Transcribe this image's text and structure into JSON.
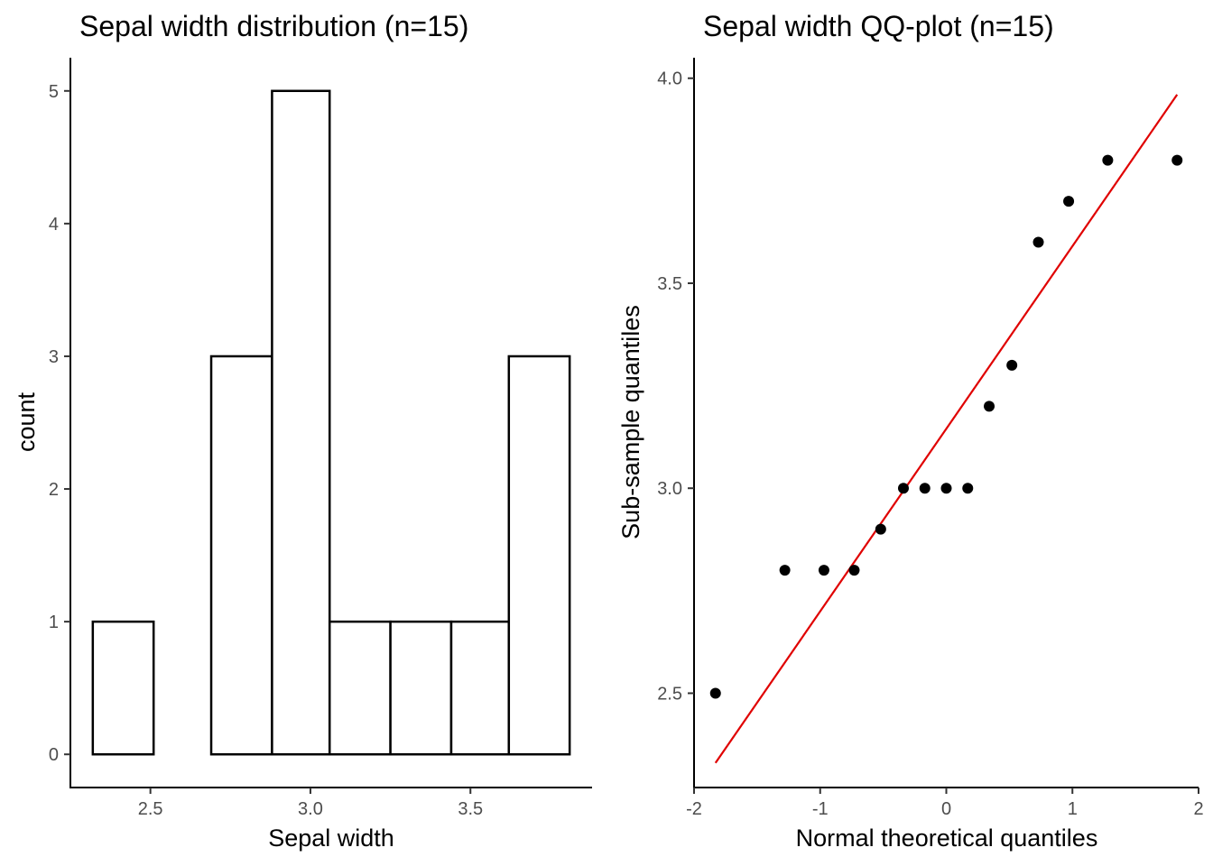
{
  "chart_data": [
    {
      "type": "bar",
      "title": "Sepal width distribution (n=15)",
      "xlabel": "Sepal width",
      "ylabel": "count",
      "bins": [
        {
          "x0": 2.32,
          "x1": 2.51,
          "count": 1
        },
        {
          "x0": 2.51,
          "x1": 2.69,
          "count": 0
        },
        {
          "x0": 2.69,
          "x1": 2.88,
          "count": 3
        },
        {
          "x0": 2.88,
          "x1": 3.06,
          "count": 5
        },
        {
          "x0": 3.06,
          "x1": 3.25,
          "count": 1
        },
        {
          "x0": 3.25,
          "x1": 3.44,
          "count": 1
        },
        {
          "x0": 3.44,
          "x1": 3.62,
          "count": 1
        },
        {
          "x0": 3.62,
          "x1": 3.81,
          "count": 3
        }
      ],
      "xlim": [
        2.25,
        3.88
      ],
      "ylim": [
        -0.25,
        5.25
      ],
      "xticks": [
        2.5,
        3.0,
        3.5
      ],
      "xtick_labels": [
        "2.5",
        "3.0",
        "3.5"
      ],
      "yticks": [
        0,
        1,
        2,
        3,
        4,
        5
      ],
      "ytick_labels": [
        "0",
        "1",
        "2",
        "3",
        "4",
        "5"
      ],
      "grid": false
    },
    {
      "type": "scatter",
      "title": "Sepal width QQ-plot (n=15)",
      "xlabel": "Normal theoretical quantiles",
      "ylabel": "Sub-sample quantiles",
      "points": [
        {
          "x": -1.83,
          "y": 2.5
        },
        {
          "x": -1.28,
          "y": 2.8
        },
        {
          "x": -0.97,
          "y": 2.8
        },
        {
          "x": -0.73,
          "y": 2.8
        },
        {
          "x": -0.52,
          "y": 2.9
        },
        {
          "x": -0.34,
          "y": 3.0
        },
        {
          "x": -0.17,
          "y": 3.0
        },
        {
          "x": 0.0,
          "y": 3.0
        },
        {
          "x": 0.17,
          "y": 3.0
        },
        {
          "x": 0.34,
          "y": 3.2
        },
        {
          "x": 0.52,
          "y": 3.3
        },
        {
          "x": 0.73,
          "y": 3.6
        },
        {
          "x": 0.97,
          "y": 3.7
        },
        {
          "x": 1.28,
          "y": 3.8
        },
        {
          "x": 1.83,
          "y": 3.8
        }
      ],
      "reference_line": {
        "x0": -1.83,
        "y0": 2.33,
        "x1": 1.83,
        "y1": 3.96,
        "color": "#e00000"
      },
      "xlim": [
        -2.0,
        2.0
      ],
      "ylim": [
        2.27,
        4.05
      ],
      "xticks": [
        -2,
        -1,
        0,
        1,
        2
      ],
      "xtick_labels": [
        "-2",
        "-1",
        "0",
        "1",
        "2"
      ],
      "yticks": [
        2.5,
        3.0,
        3.5,
        4.0
      ],
      "ytick_labels": [
        "2.5",
        "3.0",
        "3.5",
        "4.0"
      ],
      "grid": false
    }
  ]
}
